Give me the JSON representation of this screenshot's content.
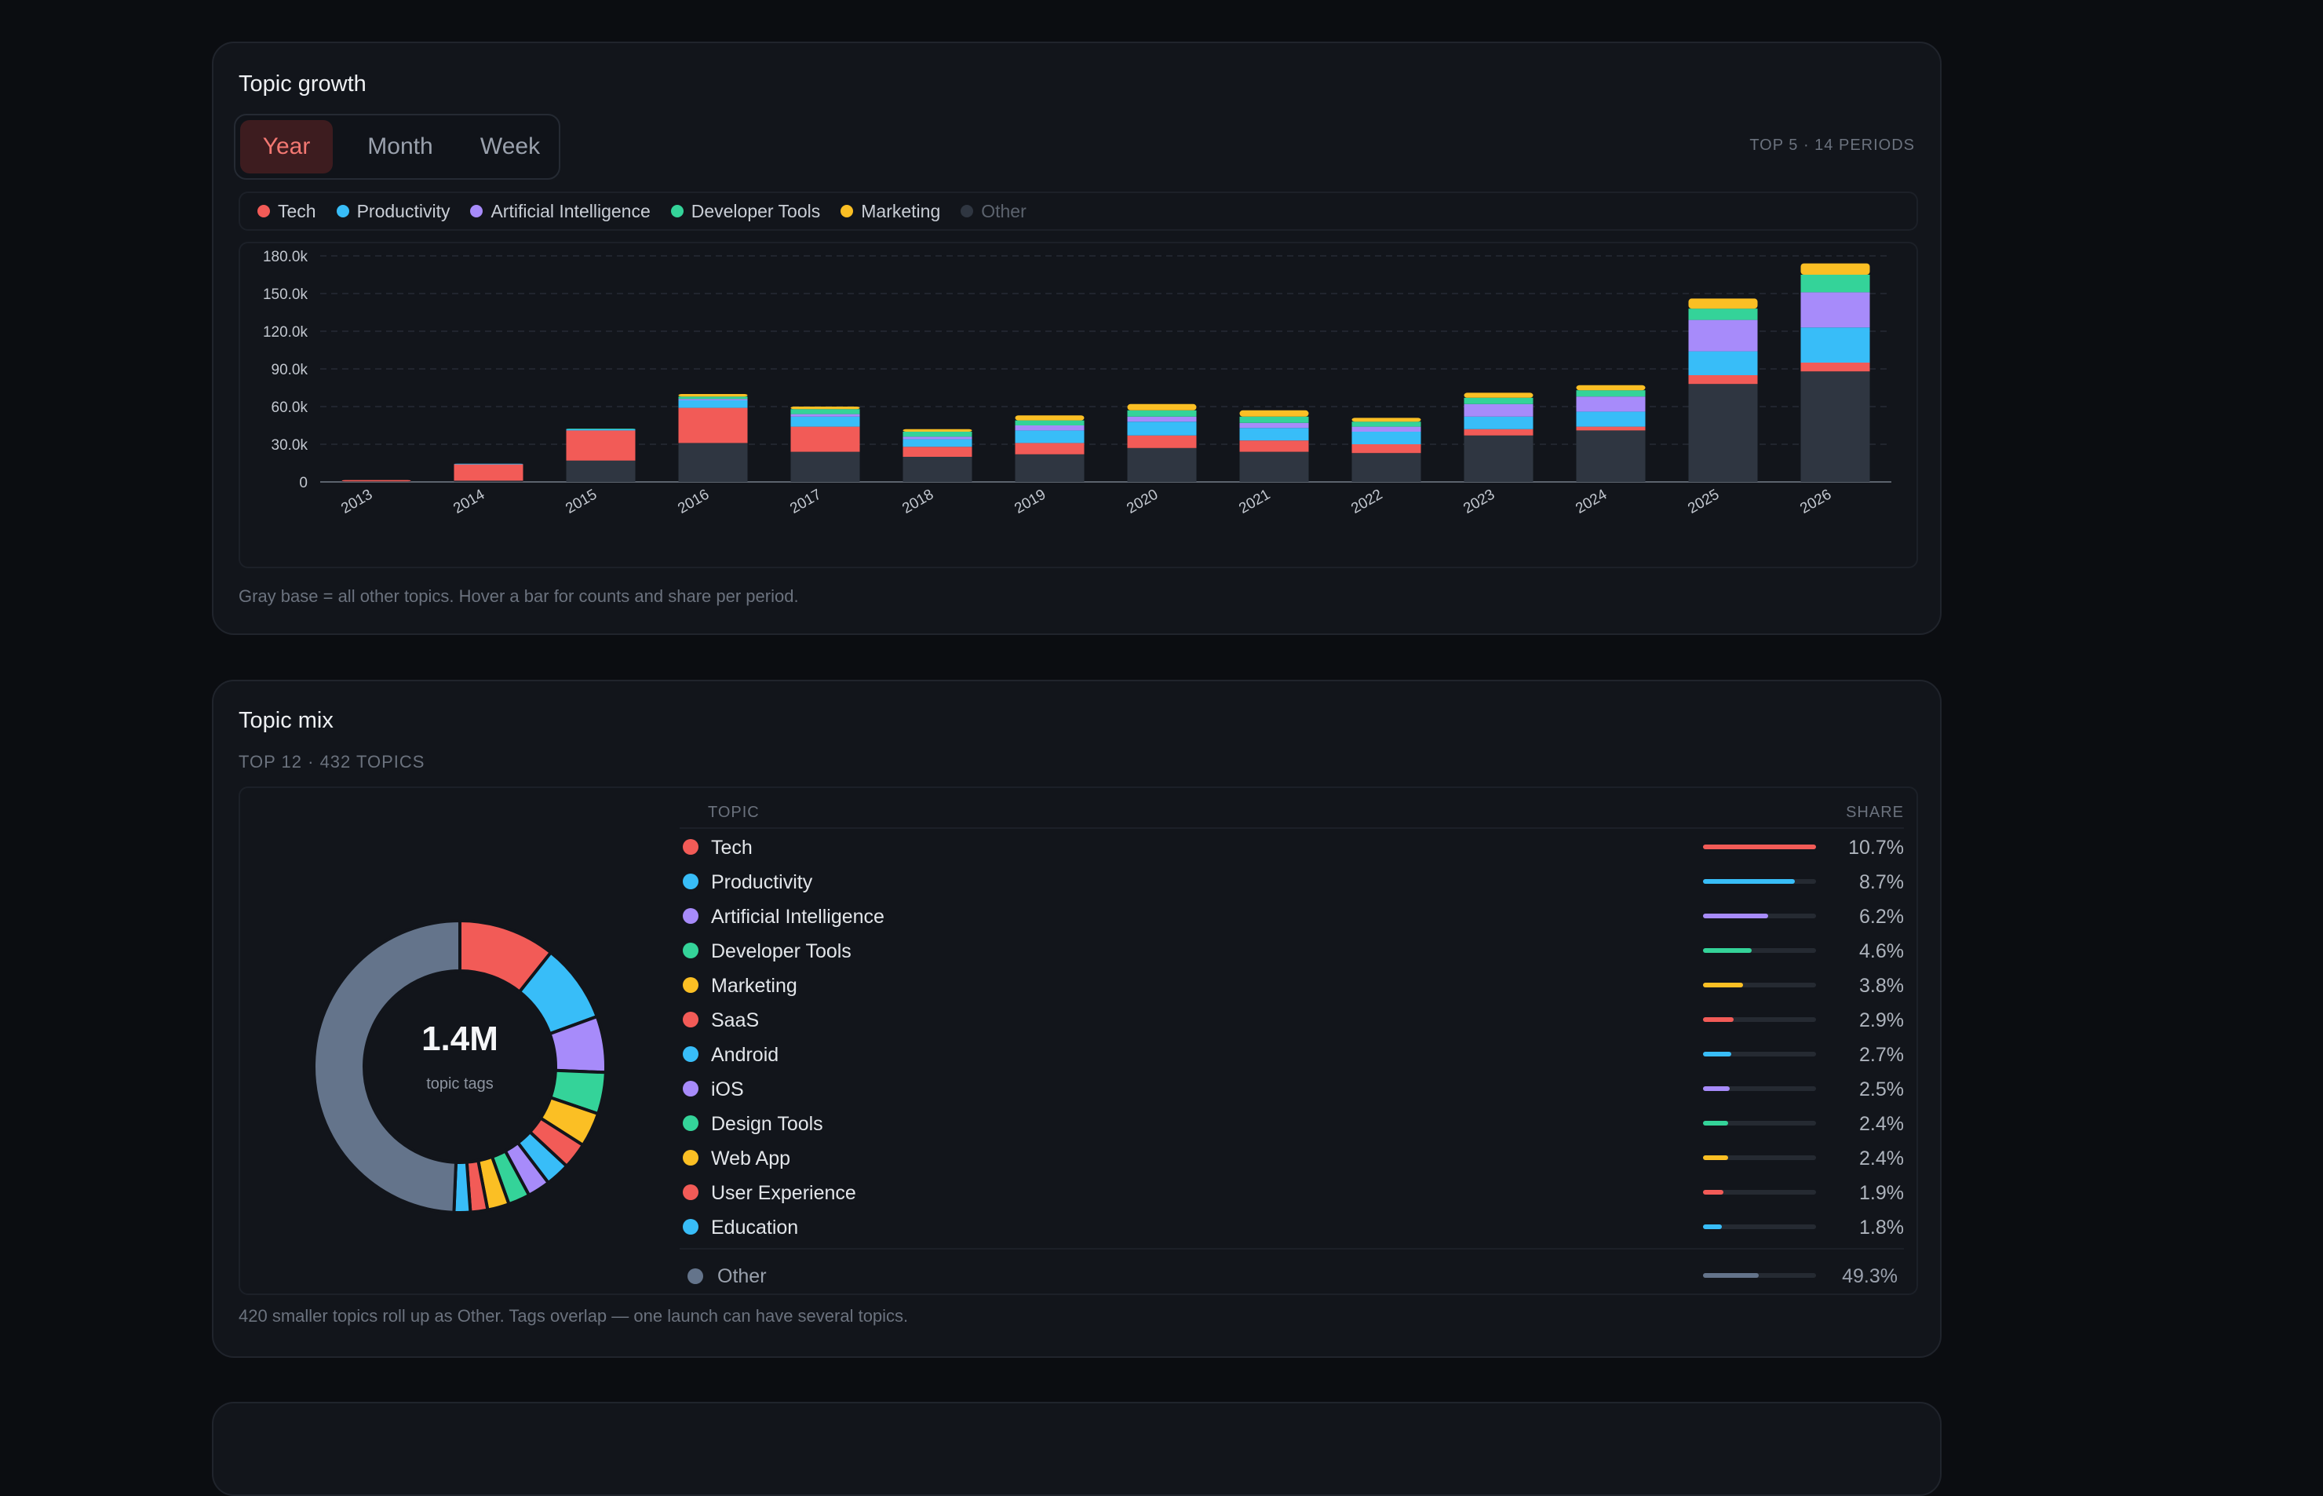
{
  "growth": {
    "title": "Topic growth",
    "tabs": [
      {
        "label": "Year",
        "active": true
      },
      {
        "label": "Month",
        "active": false
      },
      {
        "label": "Week",
        "active": false
      }
    ],
    "caption": "TOP 5 · 14 PERIODS",
    "footnote": "Gray base = all other topics. Hover a bar for counts and share per period."
  },
  "colors": {
    "Tech": "#f25b57",
    "Productivity": "#38bdf8",
    "Artificial Intelligence": "#a78bfa",
    "Developer Tools": "#34d399",
    "Marketing": "#fbbf24",
    "Other": "#2f3641",
    "OtherDonut": "#64748b"
  },
  "chart_data": [
    {
      "type": "bar",
      "stacked": true,
      "categories": [
        "2013",
        "2014",
        "2015",
        "2016",
        "2017",
        "2018",
        "2019",
        "2020",
        "2021",
        "2022",
        "2023",
        "2024",
        "2025",
        "2026"
      ],
      "series": [
        {
          "name": "Other",
          "values": [
            500,
            1000,
            17000,
            31000,
            24000,
            20000,
            22000,
            27000,
            24000,
            23000,
            37000,
            41000,
            78000,
            88000
          ]
        },
        {
          "name": "Tech",
          "values": [
            1000,
            13000,
            24000,
            28000,
            20000,
            8000,
            9000,
            10000,
            9000,
            7000,
            5000,
            3000,
            7000,
            7000
          ]
        },
        {
          "name": "Productivity",
          "values": [
            0,
            500,
            1000,
            6000,
            8000,
            6000,
            10000,
            11000,
            10000,
            10000,
            10000,
            12000,
            19000,
            28000
          ]
        },
        {
          "name": "Artificial Intelligence",
          "values": [
            0,
            0,
            0,
            1000,
            2000,
            2000,
            4000,
            4000,
            4000,
            4000,
            10000,
            12000,
            25000,
            28000
          ]
        },
        {
          "name": "Developer Tools",
          "values": [
            0,
            0,
            500,
            2000,
            4000,
            4000,
            4000,
            5000,
            5000,
            4000,
            5000,
            5000,
            9000,
            14000
          ]
        },
        {
          "name": "Marketing",
          "values": [
            0,
            0,
            0,
            2000,
            2000,
            2000,
            4000,
            5000,
            5000,
            3000,
            4000,
            4000,
            8000,
            9000
          ]
        }
      ],
      "ylim": [
        0,
        180000
      ],
      "yticks": [
        "0",
        "30.0k",
        "60.0k",
        "90.0k",
        "120.0k",
        "150.0k",
        "180.0k"
      ],
      "grid": true,
      "legend": [
        {
          "name": "Tech",
          "dim": false
        },
        {
          "name": "Productivity",
          "dim": false
        },
        {
          "name": "Artificial Intelligence",
          "dim": false
        },
        {
          "name": "Developer Tools",
          "dim": false
        },
        {
          "name": "Marketing",
          "dim": false
        },
        {
          "name": "Other",
          "dim": true
        }
      ]
    },
    {
      "type": "pie",
      "donut": true,
      "center_value": "1.4M",
      "center_label": "topic tags",
      "columns": [
        "TOPIC",
        "SHARE"
      ],
      "slices": [
        {
          "label": "Tech",
          "share": 10.7,
          "pct": "10.7%"
        },
        {
          "label": "Productivity",
          "share": 8.7,
          "pct": "8.7%"
        },
        {
          "label": "Artificial Intelligence",
          "share": 6.2,
          "pct": "6.2%"
        },
        {
          "label": "Developer Tools",
          "share": 4.6,
          "pct": "4.6%"
        },
        {
          "label": "Marketing",
          "share": 3.8,
          "pct": "3.8%"
        },
        {
          "label": "SaaS",
          "share": 2.9,
          "pct": "2.9%"
        },
        {
          "label": "Android",
          "share": 2.7,
          "pct": "2.7%"
        },
        {
          "label": "iOS",
          "share": 2.5,
          "pct": "2.5%"
        },
        {
          "label": "Design Tools",
          "share": 2.4,
          "pct": "2.4%"
        },
        {
          "label": "Web App",
          "share": 2.4,
          "pct": "2.4%"
        },
        {
          "label": "User Experience",
          "share": 1.9,
          "pct": "1.9%"
        },
        {
          "label": "Education",
          "share": 1.8,
          "pct": "1.8%"
        }
      ],
      "other": {
        "label": "Other",
        "share": 49.3,
        "pct": "49.3%"
      }
    }
  ],
  "mix": {
    "title": "Topic mix",
    "caption": "TOP 12 · 432 TOPICS",
    "footnote": "420 smaller topics roll up as Other. Tags overlap — one launch can have several topics."
  }
}
